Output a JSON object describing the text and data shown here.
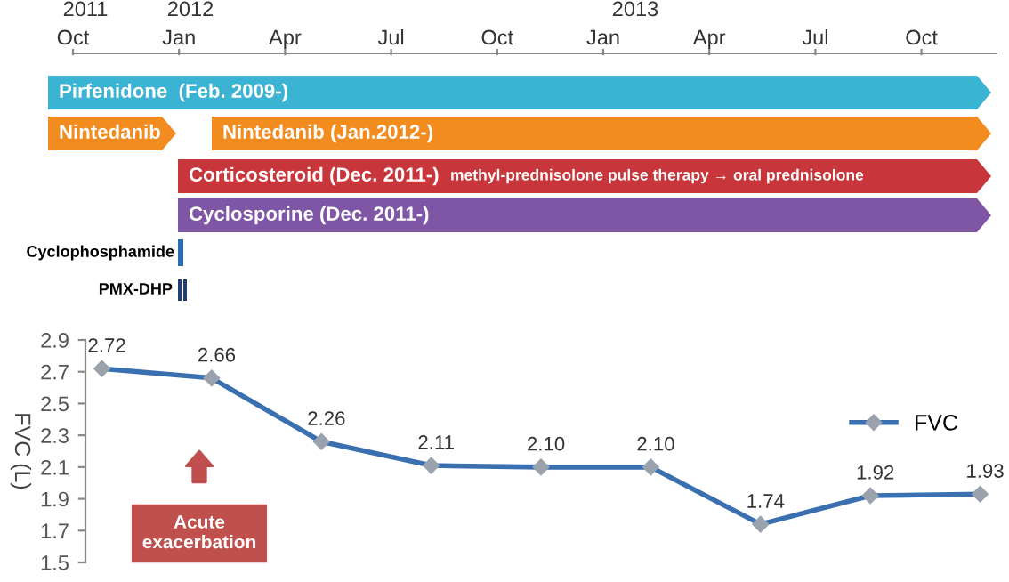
{
  "chart_data": [
    {
      "type": "other",
      "colors": [
        "#3bb3d3",
        "#f28c1e",
        "#f28c1e",
        "#c8353a",
        "#7f55a6",
        "#2a6fb0",
        "#1f3f6e",
        "#1f3f6e"
      ],
      "annotations": [
        "2011",
        "2012",
        "2013",
        "Oct",
        "Jan",
        "Apr",
        "Jul",
        "Oct",
        "Jan",
        "Apr",
        "Jul",
        "Oct",
        "Pirfenidone  (Feb. 2009-)",
        "Nintedanib",
        "Nintedanib (Jan.2012-)",
        "Corticosteroid (Dec. 2011-)",
        "methyl-prednisolone pulse therapy → oral prednisolone",
        "Cyclosporine (Dec. 2011-)",
        "Cyclophosphamide",
        "PMX-DHP"
      ]
    },
    {
      "type": "line",
      "categories": [
        null,
        null,
        null,
        null,
        null,
        null,
        null,
        null,
        null
      ],
      "series": [
        {
          "name": "FVC",
          "color": "#3a6fb0",
          "values": [
            2.72,
            2.66,
            2.26,
            2.11,
            2.1,
            2.1,
            1.74,
            1.92,
            1.93
          ]
        }
      ],
      "value_labels": [
        "2.72",
        "2.66",
        "2.26",
        "2.11",
        "2.10",
        "2.10",
        "1.74",
        "1.92",
        "1.93"
      ],
      "ylim": [
        1.5,
        2.9
      ],
      "yticks": [
        1.5,
        1.7,
        1.9,
        2.1,
        2.3,
        2.5,
        2.7,
        2.9
      ],
      "ylabel": "FVC (L)",
      "marker": "diamond",
      "line_style": "solid",
      "legend": "center right",
      "annotations": [
        "Acute\nexacerbation"
      ]
    }
  ]
}
